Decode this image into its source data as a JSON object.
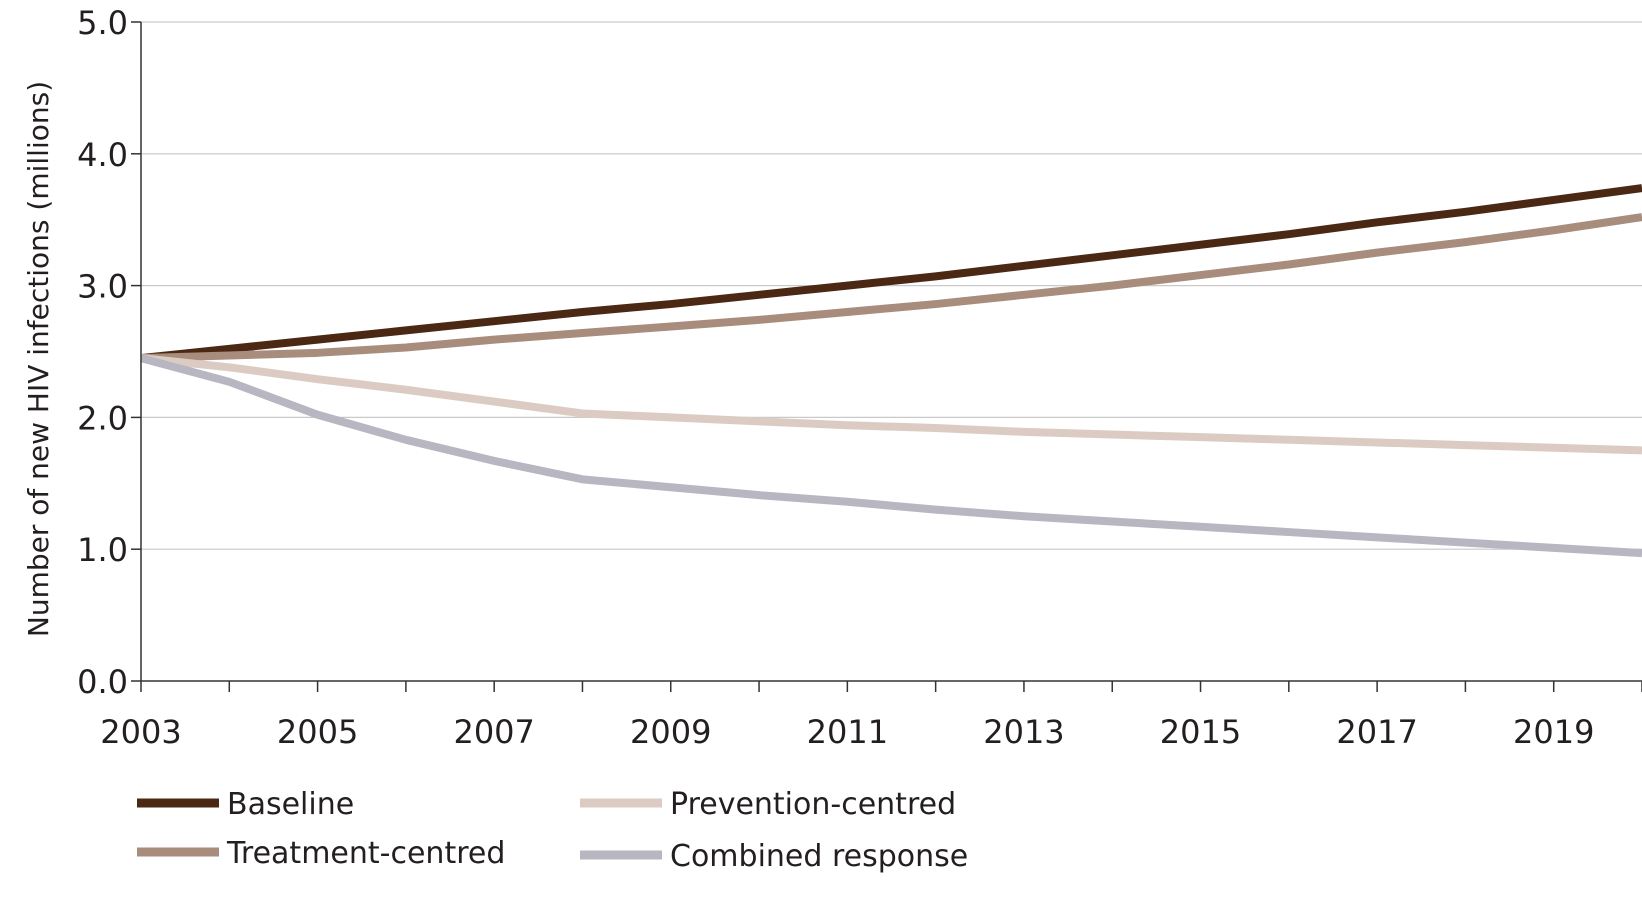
{
  "chart_data": {
    "type": "line",
    "title": "",
    "xlabel": "",
    "ylabel": "Number of new HIV infections (millions)",
    "xlim": [
      2003,
      2020
    ],
    "ylim": [
      0,
      5
    ],
    "grid": true,
    "legend_position": "bottom",
    "x_ticks": [
      2003,
      2005,
      2007,
      2009,
      2011,
      2013,
      2015,
      2017,
      2019
    ],
    "x_tick_labels": [
      "2003",
      "2005",
      "2007",
      "2009",
      "2011",
      "2013",
      "2015",
      "2017",
      "2019"
    ],
    "y_ticks": [
      0,
      1,
      2,
      3,
      4,
      5
    ],
    "y_tick_labels": [
      "0.0",
      "1.0",
      "2.0",
      "3.0",
      "4.0",
      "5.0"
    ],
    "x": [
      2003,
      2004,
      2005,
      2006,
      2007,
      2008,
      2009,
      2010,
      2011,
      2012,
      2013,
      2014,
      2015,
      2016,
      2017,
      2018,
      2019,
      2020
    ],
    "series": [
      {
        "name": "Baseline",
        "color": "#4a2814",
        "values": [
          2.45,
          2.52,
          2.59,
          2.66,
          2.73,
          2.8,
          2.86,
          2.93,
          3.0,
          3.07,
          3.15,
          3.23,
          3.31,
          3.39,
          3.48,
          3.56,
          3.65,
          3.74
        ]
      },
      {
        "name": "Treatment-centred",
        "color": "#a88c7c",
        "values": [
          2.45,
          2.47,
          2.49,
          2.53,
          2.59,
          2.64,
          2.69,
          2.74,
          2.8,
          2.86,
          2.93,
          3.0,
          3.08,
          3.16,
          3.25,
          3.33,
          3.42,
          3.52
        ]
      },
      {
        "name": "Prevention-centred",
        "color": "#dccbc2",
        "values": [
          2.45,
          2.38,
          2.29,
          2.21,
          2.12,
          2.03,
          2.0,
          1.97,
          1.94,
          1.92,
          1.89,
          1.87,
          1.85,
          1.83,
          1.81,
          1.79,
          1.77,
          1.75
        ]
      },
      {
        "name": "Combined response",
        "color": "#b7b6c1",
        "values": [
          2.45,
          2.27,
          2.02,
          1.83,
          1.67,
          1.53,
          1.47,
          1.41,
          1.36,
          1.3,
          1.25,
          1.21,
          1.17,
          1.13,
          1.09,
          1.05,
          1.01,
          0.97
        ]
      }
    ]
  }
}
